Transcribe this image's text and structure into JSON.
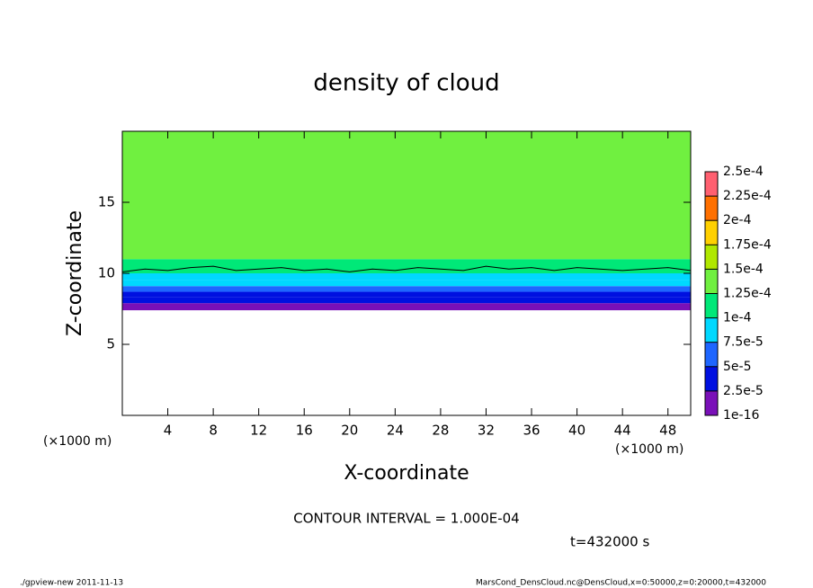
{
  "chart_data": {
    "type": "contour",
    "title": "density of cloud",
    "x_label": "X-coordinate",
    "y_label": "Z-coordinate",
    "x_unit": "(×1000 m)",
    "x_unit_right": "(×1000 m)",
    "contour_note": "CONTOUR INTERVAL = 1.000E-04",
    "time_note": "t=432000 s",
    "footer_left": "./gpview-new   2011-11-13",
    "footer_right": "MarsCond_DensCloud.nc@DensCloud,x=0:50000,z=0:20000,t=432000",
    "xlim": [
      0,
      50
    ],
    "ylim": [
      0,
      20
    ],
    "xticks": [
      4,
      8,
      12,
      16,
      20,
      24,
      28,
      32,
      36,
      40,
      44,
      48
    ],
    "yticks": [
      5,
      10,
      15
    ],
    "profile": {
      "z_edges": [
        7.4,
        7.9,
        8.3,
        8.7,
        9.1,
        9.5,
        10,
        11,
        20
      ],
      "values": [
        1e-05,
        3e-05,
        4.5e-05,
        6e-05,
        8e-05,
        9.5e-05,
        0.00011,
        0.00013
      ]
    },
    "contour": {
      "x": [
        0,
        2,
        4,
        6,
        8,
        10,
        12,
        14,
        16,
        18,
        20,
        22,
        24,
        26,
        28,
        30,
        32,
        34,
        36,
        38,
        40,
        42,
        44,
        46,
        48,
        50
      ],
      "z": [
        10.1,
        10.3,
        10.2,
        10.4,
        10.5,
        10.2,
        10.3,
        10.4,
        10.2,
        10.3,
        10.1,
        10.3,
        10.2,
        10.4,
        10.3,
        10.2,
        10.5,
        10.3,
        10.4,
        10.2,
        10.4,
        10.3,
        10.2,
        10.3,
        10.4,
        10.2
      ]
    },
    "colorbar": {
      "levels": [
        1e-16,
        {
          "value": 2.5e-05,
          "label": "2.5e-5"
        },
        {
          "value": 5e-05,
          "label": "5e-5"
        },
        {
          "value": 7.5e-05,
          "label": "7.5e-5"
        },
        {
          "value": 0.0001,
          "label": "1e-4"
        },
        {
          "value": 0.000125,
          "label": "1.25e-4"
        },
        {
          "value": 0.00015,
          "label": "1.5e-4"
        },
        {
          "value": 0.000175,
          "label": "1.75e-4"
        },
        {
          "value": 0.0002,
          "label": "2e-4"
        },
        {
          "value": 0.000225,
          "label": "2.25e-4"
        },
        {
          "value": 0.00025,
          "label": "2.5e-4"
        }
      ],
      "colors": [
        "#7a10b8",
        "#0010e0",
        "#1e66ff",
        "#00d8ff",
        "#00e878",
        "#70f040",
        "#b0e800",
        "#ffd000",
        "#ff7000",
        "#ff6070"
      ]
    }
  }
}
